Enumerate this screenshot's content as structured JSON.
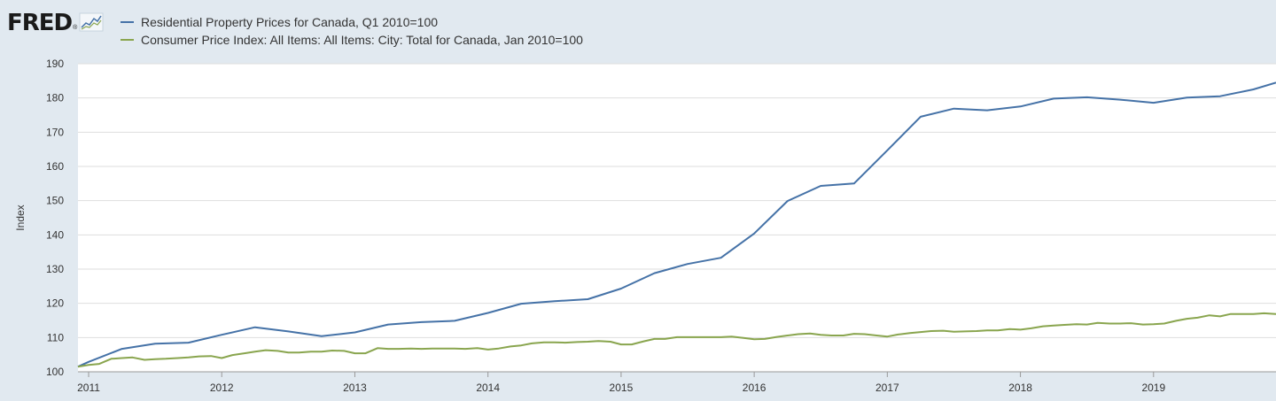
{
  "logo": {
    "text": "FRED",
    "registered": "®",
    "chart_icon": "line-chart-icon"
  },
  "legend": [
    {
      "label": "Residential Property Prices for Canada, Q1 2010=100",
      "color": "#4572a7"
    },
    {
      "label": "Consumer Price Index: All Items: All Items: City: Total for Canada, Jan 2010=100",
      "color": "#89a54e"
    }
  ],
  "chart_data": {
    "type": "line",
    "ylabel": "Index",
    "xlabel": "",
    "ylim": [
      100,
      190
    ],
    "yticks": [
      100,
      110,
      120,
      130,
      140,
      150,
      160,
      170,
      180,
      190
    ],
    "xlim": [
      2010.92,
      2019.92
    ],
    "xticks": [
      2011,
      2012,
      2013,
      2014,
      2015,
      2016,
      2017,
      2018,
      2019
    ],
    "grid": true,
    "legend_position": "top-left",
    "series": [
      {
        "name": "Residential Property Prices for Canada, Q1 2010=100",
        "color": "#4572a7",
        "points": [
          [
            2010.92,
            101.5
          ],
          [
            2011.0,
            102.9
          ],
          [
            2011.25,
            106.7
          ],
          [
            2011.5,
            108.2
          ],
          [
            2011.75,
            108.5
          ],
          [
            2012.0,
            110.8
          ],
          [
            2012.25,
            113.0
          ],
          [
            2012.5,
            111.8
          ],
          [
            2012.75,
            110.4
          ],
          [
            2013.0,
            111.5
          ],
          [
            2013.25,
            113.8
          ],
          [
            2013.5,
            114.5
          ],
          [
            2013.75,
            114.9
          ],
          [
            2014.0,
            117.2
          ],
          [
            2014.25,
            119.9
          ],
          [
            2014.5,
            120.6
          ],
          [
            2014.75,
            121.2
          ],
          [
            2015.0,
            124.3
          ],
          [
            2015.25,
            128.8
          ],
          [
            2015.5,
            131.5
          ],
          [
            2015.75,
            133.3
          ],
          [
            2016.0,
            140.4
          ],
          [
            2016.25,
            149.9
          ],
          [
            2016.5,
            154.3
          ],
          [
            2016.75,
            155.0
          ],
          [
            2017.0,
            164.7
          ],
          [
            2017.25,
            174.5
          ],
          [
            2017.5,
            176.9
          ],
          [
            2017.75,
            176.4
          ],
          [
            2018.0,
            177.5
          ],
          [
            2018.25,
            179.8
          ],
          [
            2018.5,
            180.2
          ],
          [
            2018.75,
            179.5
          ],
          [
            2019.0,
            178.6
          ],
          [
            2019.25,
            180.1
          ],
          [
            2019.5,
            180.5
          ],
          [
            2019.75,
            182.5
          ],
          [
            2019.92,
            184.5
          ]
        ]
      },
      {
        "name": "Consumer Price Index: All Items: All Items: City: Total for Canada, Jan 2010=100",
        "color": "#89a54e",
        "points": [
          [
            2010.92,
            101.5
          ],
          [
            2011.0,
            102.0
          ],
          [
            2011.08,
            102.3
          ],
          [
            2011.17,
            103.8
          ],
          [
            2011.25,
            104.0
          ],
          [
            2011.33,
            104.2
          ],
          [
            2011.42,
            103.5
          ],
          [
            2011.5,
            103.7
          ],
          [
            2011.58,
            103.8
          ],
          [
            2011.67,
            104.0
          ],
          [
            2011.75,
            104.2
          ],
          [
            2011.83,
            104.5
          ],
          [
            2011.92,
            104.6
          ],
          [
            2012.0,
            104.0
          ],
          [
            2012.08,
            104.9
          ],
          [
            2012.17,
            105.4
          ],
          [
            2012.25,
            105.9
          ],
          [
            2012.33,
            106.3
          ],
          [
            2012.42,
            106.1
          ],
          [
            2012.5,
            105.6
          ],
          [
            2012.58,
            105.6
          ],
          [
            2012.67,
            105.9
          ],
          [
            2012.75,
            105.9
          ],
          [
            2012.83,
            106.2
          ],
          [
            2012.92,
            106.1
          ],
          [
            2013.0,
            105.4
          ],
          [
            2013.08,
            105.4
          ],
          [
            2013.17,
            106.9
          ],
          [
            2013.25,
            106.7
          ],
          [
            2013.33,
            106.7
          ],
          [
            2013.42,
            106.8
          ],
          [
            2013.5,
            106.7
          ],
          [
            2013.58,
            106.8
          ],
          [
            2013.67,
            106.8
          ],
          [
            2013.75,
            106.8
          ],
          [
            2013.83,
            106.7
          ],
          [
            2013.92,
            106.9
          ],
          [
            2014.0,
            106.5
          ],
          [
            2014.08,
            106.8
          ],
          [
            2014.17,
            107.4
          ],
          [
            2014.25,
            107.7
          ],
          [
            2014.33,
            108.3
          ],
          [
            2014.42,
            108.6
          ],
          [
            2014.5,
            108.6
          ],
          [
            2014.58,
            108.5
          ],
          [
            2014.67,
            108.7
          ],
          [
            2014.75,
            108.8
          ],
          [
            2014.83,
            109.0
          ],
          [
            2014.92,
            108.8
          ],
          [
            2015.0,
            108.0
          ],
          [
            2015.08,
            108.0
          ],
          [
            2015.17,
            108.9
          ],
          [
            2015.25,
            109.6
          ],
          [
            2015.33,
            109.6
          ],
          [
            2015.42,
            110.1
          ],
          [
            2015.5,
            110.1
          ],
          [
            2015.58,
            110.1
          ],
          [
            2015.67,
            110.1
          ],
          [
            2015.75,
            110.1
          ],
          [
            2015.83,
            110.3
          ],
          [
            2015.92,
            109.9
          ],
          [
            2016.0,
            109.5
          ],
          [
            2016.08,
            109.6
          ],
          [
            2016.17,
            110.2
          ],
          [
            2016.25,
            110.6
          ],
          [
            2016.33,
            111.0
          ],
          [
            2016.42,
            111.2
          ],
          [
            2016.5,
            110.8
          ],
          [
            2016.58,
            110.6
          ],
          [
            2016.67,
            110.6
          ],
          [
            2016.75,
            111.1
          ],
          [
            2016.83,
            111.0
          ],
          [
            2016.92,
            110.6
          ],
          [
            2017.0,
            110.3
          ],
          [
            2017.08,
            110.9
          ],
          [
            2017.17,
            111.3
          ],
          [
            2017.25,
            111.6
          ],
          [
            2017.33,
            111.9
          ],
          [
            2017.42,
            112.0
          ],
          [
            2017.5,
            111.7
          ],
          [
            2017.58,
            111.8
          ],
          [
            2017.67,
            111.9
          ],
          [
            2017.75,
            112.1
          ],
          [
            2017.83,
            112.1
          ],
          [
            2017.92,
            112.5
          ],
          [
            2018.0,
            112.3
          ],
          [
            2018.08,
            112.7
          ],
          [
            2018.17,
            113.3
          ],
          [
            2018.25,
            113.5
          ],
          [
            2018.33,
            113.7
          ],
          [
            2018.42,
            113.9
          ],
          [
            2018.5,
            113.8
          ],
          [
            2018.58,
            114.3
          ],
          [
            2018.67,
            114.1
          ],
          [
            2018.75,
            114.1
          ],
          [
            2018.83,
            114.2
          ],
          [
            2018.92,
            113.8
          ],
          [
            2019.0,
            113.9
          ],
          [
            2019.08,
            114.1
          ],
          [
            2019.17,
            114.9
          ],
          [
            2019.25,
            115.5
          ],
          [
            2019.33,
            115.8
          ],
          [
            2019.42,
            116.5
          ],
          [
            2019.5,
            116.2
          ],
          [
            2019.58,
            116.9
          ],
          [
            2019.67,
            116.9
          ],
          [
            2019.75,
            116.9
          ],
          [
            2019.83,
            117.1
          ],
          [
            2019.92,
            116.9
          ]
        ]
      }
    ]
  }
}
